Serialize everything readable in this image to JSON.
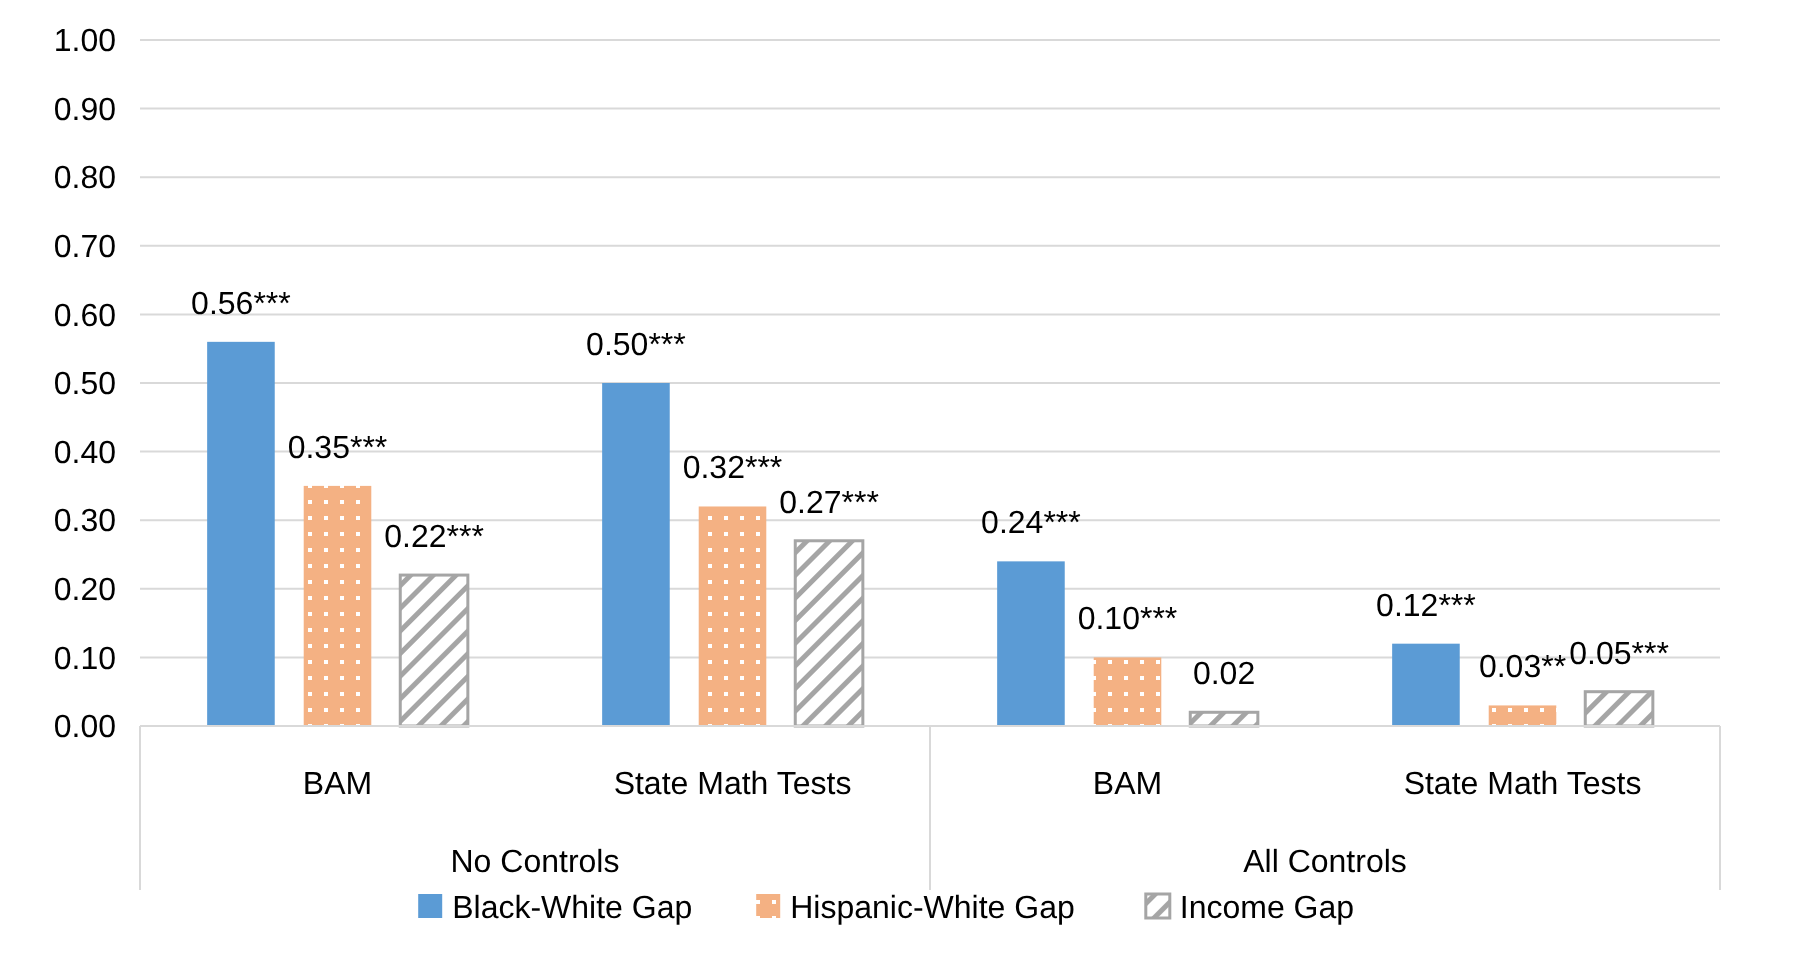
{
  "chart_data": {
    "type": "bar",
    "categories": [
      "BAM",
      "State Math Tests",
      "BAM",
      "State Math Tests"
    ],
    "series": [
      {
        "name": "Black-White Gap",
        "color": "#5b9bd5",
        "values": [
          0.56,
          0.5,
          0.24,
          0.12
        ],
        "value_labels": [
          "0.56***",
          "0.50***",
          "0.24***",
          "0.12***"
        ]
      },
      {
        "name": "Hispanic-White Gap",
        "color": "#f4b183",
        "values": [
          0.35,
          0.32,
          0.1,
          0.03
        ],
        "value_labels": [
          "0.35***",
          "0.32***",
          "0.10***",
          "0.03**"
        ]
      },
      {
        "name": "Income Gap",
        "color": "#a5a5a5",
        "values": [
          0.22,
          0.27,
          0.02,
          0.05
        ],
        "value_labels": [
          "0.22***",
          "0.27***",
          "0.02",
          "0.05***"
        ]
      }
    ],
    "annotations": [
      "No Controls",
      "All Controls"
    ],
    "ylim": [
      0,
      1
    ],
    "yticks": [
      {
        "value": 0,
        "label": "0.00"
      },
      {
        "value": 0.1,
        "label": "0.10"
      },
      {
        "value": 0.2,
        "label": "0.20"
      },
      {
        "value": 0.3,
        "label": "0.30"
      },
      {
        "value": 0.4,
        "label": "0.40"
      },
      {
        "value": 0.5,
        "label": "0.50"
      },
      {
        "value": 0.6,
        "label": "0.60"
      },
      {
        "value": 0.7,
        "label": "0.70"
      },
      {
        "value": 0.8,
        "label": "0.80"
      },
      {
        "value": 0.9,
        "label": "0.90"
      },
      {
        "value": 1,
        "label": "1.00"
      }
    ],
    "grid": "y",
    "legend": "bottom"
  }
}
